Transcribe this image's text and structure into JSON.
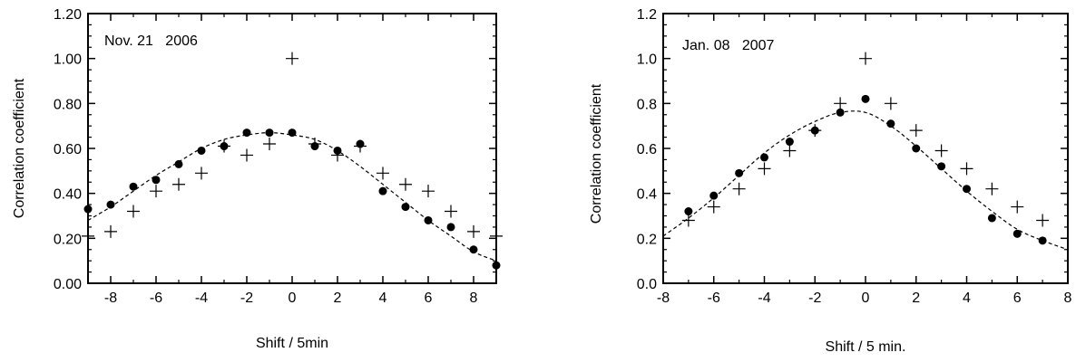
{
  "chart_data": [
    {
      "type": "scatter",
      "annotation": "Nov. 21   2006",
      "xlabel": "Shift / 5min",
      "ylabel": "Correlation coefficient",
      "xlim": [
        -9,
        9
      ],
      "ylim": [
        0,
        1.2
      ],
      "x_ticks": [
        -8,
        -6,
        -4,
        -2,
        0,
        2,
        4,
        6,
        8
      ],
      "y_ticks": [
        0,
        0.2,
        0.4,
        0.6,
        0.8,
        1.0,
        1.2
      ],
      "y_tick_labels": [
        "0.00",
        "0.20",
        "0.40",
        "0.60",
        "0.80",
        "1.00",
        "1.20"
      ],
      "grid": false,
      "series": [
        {
          "marker": "filled-circle",
          "x": [
            -9,
            -8,
            -7,
            -6,
            -5,
            -4,
            -3,
            -2,
            -1,
            0,
            1,
            2,
            3,
            4,
            5,
            6,
            7,
            8,
            9
          ],
          "y": [
            0.33,
            0.35,
            0.43,
            0.46,
            0.53,
            0.59,
            0.61,
            0.67,
            0.67,
            0.67,
            0.61,
            0.59,
            0.62,
            0.41,
            0.34,
            0.28,
            0.25,
            0.15,
            0.08
          ]
        },
        {
          "marker": "plus",
          "x": [
            -9,
            -8,
            -7,
            -6,
            -5,
            -4,
            -3,
            -2,
            -1,
            0,
            1,
            2,
            3,
            4,
            5,
            6,
            7,
            8,
            9
          ],
          "y": [
            0.21,
            0.23,
            0.32,
            0.41,
            0.44,
            0.49,
            0.61,
            0.57,
            0.62,
            1.0,
            0.62,
            0.57,
            0.61,
            0.49,
            0.44,
            0.41,
            0.32,
            0.23,
            0.21
          ]
        },
        {
          "line": "dashed",
          "x": [
            -9,
            -8,
            -7,
            -6,
            -5,
            -4,
            -3,
            -2,
            -1,
            0,
            1,
            2,
            3,
            4,
            5,
            6,
            7,
            8,
            9
          ],
          "y": [
            0.28,
            0.34,
            0.41,
            0.48,
            0.54,
            0.6,
            0.64,
            0.66,
            0.67,
            0.66,
            0.64,
            0.59,
            0.52,
            0.44,
            0.36,
            0.28,
            0.21,
            0.14,
            0.1
          ]
        }
      ]
    },
    {
      "type": "scatter",
      "annotation": "Jan. 08   2007",
      "xlabel": "Shift / 5 min.",
      "ylabel": "Correlation coefficient",
      "xlim": [
        -8,
        8
      ],
      "ylim": [
        0,
        1.2
      ],
      "x_ticks": [
        -8,
        -6,
        -4,
        -2,
        0,
        2,
        4,
        6,
        8
      ],
      "y_ticks": [
        0,
        0.2,
        0.4,
        0.6,
        0.8,
        1.0,
        1.2
      ],
      "y_tick_labels": [
        "0.0",
        "0.2",
        "0.4",
        "0.6",
        "0.8",
        "1.0",
        "1.2"
      ],
      "grid": false,
      "series": [
        {
          "marker": "filled-circle",
          "x": [
            -7,
            -6,
            -5,
            -4,
            -3,
            -2,
            -1,
            0,
            1,
            2,
            3,
            4,
            5,
            6,
            7
          ],
          "y": [
            0.32,
            0.39,
            0.49,
            0.56,
            0.63,
            0.68,
            0.76,
            0.82,
            0.71,
            0.6,
            0.52,
            0.42,
            0.29,
            0.22,
            0.19
          ]
        },
        {
          "marker": "plus",
          "x": [
            -7,
            -6,
            -5,
            -4,
            -3,
            -2,
            -1,
            0,
            1,
            2,
            3,
            4,
            5,
            6,
            7
          ],
          "y": [
            0.28,
            0.34,
            0.42,
            0.51,
            0.59,
            0.68,
            0.8,
            1.0,
            0.8,
            0.68,
            0.59,
            0.51,
            0.42,
            0.34,
            0.28
          ]
        },
        {
          "line": "dashed",
          "x": [
            -8,
            -7,
            -6,
            -5,
            -4,
            -3,
            -2,
            -1,
            0,
            1,
            2,
            3,
            4,
            5,
            6,
            7,
            8
          ],
          "y": [
            0.21,
            0.29,
            0.38,
            0.48,
            0.58,
            0.66,
            0.72,
            0.76,
            0.76,
            0.7,
            0.61,
            0.51,
            0.41,
            0.32,
            0.24,
            0.19,
            0.15
          ]
        }
      ]
    }
  ]
}
